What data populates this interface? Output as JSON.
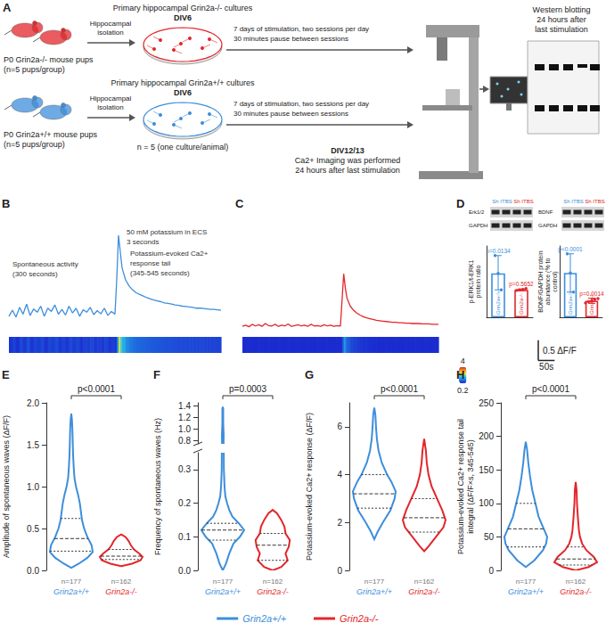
{
  "diagram": {
    "panel": "A",
    "ko_pups": [
      "P0 Grin2a-/- mouse pups",
      "(n=5 pups/group)"
    ],
    "wt_pups": [
      "P0 Grin2a+/+ mouse pups",
      "(n=5 pups/group)"
    ],
    "isolation": [
      "Hippocampal",
      "isolation"
    ],
    "ko_culture": [
      "Primary hippocampal Grin2a-/- cultures",
      "DIV6"
    ],
    "wt_culture": [
      "Primary hippocampal Grin2a+/+ cultures",
      "DIV6"
    ],
    "stimulation": [
      "7 days of stimulation, two sessions per day",
      "30 minutes pause between sessions"
    ],
    "culture_n": "n = 5 (one culture/animal)",
    "imaging": [
      "DIV12/13",
      "Ca2+ Imaging was performed",
      "24 hours after last stimulation"
    ],
    "western": [
      "Western blotting",
      "24 hours after",
      "last stimulation"
    ]
  },
  "legend": "bottom",
  "groups": [
    {
      "name": "Grin2a+/+",
      "color": "#3d8edb"
    },
    {
      "name": "Grin2a-/-",
      "color": "#e3262a"
    }
  ],
  "chart_data": [
    {
      "panel": "B",
      "type": "line",
      "x": [
        0,
        10,
        20,
        30,
        40,
        50,
        60,
        70,
        80,
        90,
        100,
        110,
        120,
        130,
        140,
        150,
        160,
        170,
        180,
        190,
        200,
        210,
        220,
        230,
        240,
        250,
        260,
        270,
        280,
        290,
        300,
        305,
        310,
        315,
        320,
        330,
        340,
        350,
        360,
        370,
        380,
        390,
        400,
        410,
        420,
        430,
        440,
        450,
        460,
        470,
        480,
        490,
        500,
        510,
        520,
        530,
        540,
        550,
        560,
        570,
        580,
        590,
        600
      ],
      "series": [
        {
          "name": "Grin2a+/+",
          "color": "#3d8edb",
          "values": [
            0.3,
            0.45,
            0.28,
            0.52,
            0.35,
            0.6,
            0.32,
            0.48,
            0.4,
            0.55,
            0.3,
            0.5,
            0.42,
            0.58,
            0.35,
            0.47,
            0.33,
            0.55,
            0.38,
            0.5,
            0.3,
            0.46,
            0.4,
            0.52,
            0.34,
            0.44,
            0.36,
            0.5,
            0.32,
            0.42,
            0.35,
            1.2,
            2.3,
            1.9,
            1.5,
            1.2,
            1.05,
            0.95,
            0.88,
            0.84,
            0.8,
            0.76,
            0.73,
            0.7,
            0.68,
            0.66,
            0.63,
            0.62,
            0.6,
            0.58,
            0.57,
            0.55,
            0.54,
            0.53,
            0.52,
            0.5,
            0.5,
            0.49,
            0.48,
            0.47,
            0.47,
            0.46,
            0.45
          ]
        }
      ],
      "xlim": [
        0,
        600
      ],
      "ylim": [
        -0.1,
        2.5
      ],
      "tick_labels": false,
      "grid": false,
      "annotations": [
        [
          "50 mM potassium in ECS",
          "3 seconds"
        ],
        [
          "Spontaneous activity",
          "(300 seconds)"
        ],
        [
          "Potassium-evoked Ca2+ response tail",
          "(345-545 seconds)"
        ]
      ]
    },
    {
      "panel": "C",
      "type": "line",
      "x": [
        0,
        10,
        20,
        30,
        40,
        50,
        60,
        70,
        80,
        90,
        100,
        110,
        120,
        130,
        140,
        150,
        160,
        170,
        180,
        190,
        200,
        210,
        220,
        230,
        240,
        250,
        260,
        270,
        280,
        290,
        300,
        305,
        310,
        315,
        320,
        330,
        340,
        350,
        360,
        370,
        380,
        390,
        400,
        410,
        420,
        430,
        440,
        450,
        460,
        470,
        480,
        490,
        500,
        510,
        520,
        530,
        540,
        550,
        560,
        570,
        580,
        590,
        600
      ],
      "series": [
        {
          "name": "Grin2a-/-",
          "color": "#e3262a",
          "values": [
            0.05,
            0.08,
            0.04,
            0.1,
            0.06,
            0.09,
            0.05,
            0.12,
            0.07,
            0.06,
            0.1,
            0.05,
            0.08,
            0.06,
            0.11,
            0.05,
            0.07,
            0.09,
            0.06,
            0.08,
            0.05,
            0.1,
            0.06,
            0.07,
            0.05,
            0.09,
            0.06,
            0.08,
            0.05,
            0.07,
            0.06,
            0.7,
            1.35,
            1.0,
            0.75,
            0.55,
            0.45,
            0.38,
            0.33,
            0.29,
            0.26,
            0.24,
            0.22,
            0.2,
            0.19,
            0.18,
            0.17,
            0.16,
            0.15,
            0.15,
            0.14,
            0.14,
            0.13,
            0.13,
            0.12,
            0.12,
            0.12,
            0.11,
            0.11,
            0.11,
            0.1,
            0.1,
            0.1
          ]
        }
      ],
      "xlim": [
        0,
        600
      ],
      "ylim": [
        -0.1,
        2.5
      ],
      "tick_labels": false,
      "grid": false,
      "colorbar": {
        "range": [
          0.2,
          4
        ],
        "ticks": [
          0.2,
          4
        ]
      },
      "scale_bar": {
        "y": 0.5,
        "y_label": "0.5 ΔF/F",
        "x": 50,
        "x_label": "50s"
      }
    },
    {
      "panel": "D",
      "type": "bar",
      "blot": {
        "rows": [
          "Erk1/2",
          "GAPDH"
        ],
        "lanes": [
          "Sh",
          "ITBS",
          "Sh",
          "ITBS"
        ],
        "lane_colors": [
          "#3d8edb",
          "#3d8edb",
          "#e3262a",
          "#e3262a"
        ]
      },
      "ylabel": "p-ERK1/t-ERK1 protein ratio",
      "categories": [
        "Grin2a+/+",
        "Grin2a-/-"
      ],
      "values": [
        160,
        100
      ],
      "colors": [
        "#3d8edb",
        "#e3262a"
      ],
      "errors": [
        [
          100,
          225
        ],
        [
          98,
          103
        ]
      ],
      "points": [
        [
          225,
          160,
          100
        ],
        [
          98,
          100,
          102,
          105
        ]
      ],
      "p_values": [
        "p=0.0134",
        "p=0.5652"
      ],
      "ylim": [
        0,
        260
      ],
      "tick_labels": false
    },
    {
      "type": "bar",
      "blot": {
        "rows": [
          "BDNF",
          "GAPDH"
        ],
        "lanes": [
          "Sh",
          "ITBS",
          "Sh",
          "ITBS"
        ],
        "lane_colors": [
          "#3d8edb",
          "#3d8edb",
          "#e3262a",
          "#e3262a"
        ]
      },
      "ylabel": "BDNF/GAPDH protein abundance (% to control)",
      "categories": [
        "Grin2a+/+",
        "Grin2a-/-"
      ],
      "values": [
        510,
        190
      ],
      "colors": [
        "#3d8edb",
        "#e3262a"
      ],
      "errors": [
        [
          290,
          730
        ],
        [
          160,
          220
        ]
      ],
      "points": [
        [
          730,
          510,
          290
        ],
        [
          165,
          180,
          190,
          205,
          215
        ]
      ],
      "p_values": [
        "p<0.0001",
        "p=0.0014"
      ],
      "ylim": [
        0,
        820
      ],
      "tick_labels": false
    },
    {
      "panel": "E",
      "type": "violin",
      "ylabel": "Amplitude of spontaneous waves (ΔF/F)",
      "categories": [
        "Grin2a+/+",
        "Grin2a-/-"
      ],
      "p_value": "p<0.0001",
      "ylim": [
        0,
        2
      ],
      "yticks": [
        {
          "value": 0,
          "label": "0.0"
        },
        0.5,
        {
          "value": 1,
          "label": "1.0"
        },
        1.5,
        {
          "value": 2,
          "label": "2.0"
        }
      ],
      "series": [
        {
          "name": "Grin2a+/+",
          "color": "#3d8edb",
          "n_label": "n=177",
          "quartiles": [
            0.23,
            0.38,
            0.62
          ],
          "profile": [
            [
              0.03,
              0
            ],
            [
              0.08,
              0.35
            ],
            [
              0.15,
              0.75
            ],
            [
              0.22,
              1.0
            ],
            [
              0.3,
              0.95
            ],
            [
              0.4,
              0.75
            ],
            [
              0.5,
              0.6
            ],
            [
              0.6,
              0.5
            ],
            [
              0.7,
              0.45
            ],
            [
              0.8,
              0.4
            ],
            [
              0.9,
              0.32
            ],
            [
              1.0,
              0.22
            ],
            [
              1.1,
              0.15
            ],
            [
              1.2,
              0.12
            ],
            [
              1.3,
              0.1
            ],
            [
              1.4,
              0.08
            ],
            [
              1.5,
              0.07
            ],
            [
              1.6,
              0.06
            ],
            [
              1.7,
              0.05
            ],
            [
              1.8,
              0.03
            ],
            [
              1.87,
              0
            ]
          ]
        },
        {
          "name": "Grin2a-/-",
          "color": "#e3262a",
          "n_label": "n=162",
          "quartiles": [
            0.13,
            0.17,
            0.25
          ],
          "profile": [
            [
              0.05,
              0
            ],
            [
              0.08,
              0.5
            ],
            [
              0.12,
              0.9
            ],
            [
              0.16,
              1.0
            ],
            [
              0.2,
              0.85
            ],
            [
              0.25,
              0.6
            ],
            [
              0.3,
              0.45
            ],
            [
              0.35,
              0.35
            ],
            [
              0.4,
              0.2
            ],
            [
              0.43,
              0
            ]
          ]
        }
      ]
    },
    {
      "panel": "F",
      "type": "violin",
      "ylabel": "Frequency of spontaneous waves (Hz)",
      "categories": [
        "Grin2a+/+",
        "Grin2a-/-"
      ],
      "p_value": "p=0.0003",
      "segments": [
        {
          "ylim": [
            0.75,
            1.45
          ],
          "yticks": [
            0.8,
            {
              "value": 1,
              "label": "1.0"
            },
            1.2,
            1.4
          ]
        },
        {
          "ylim": [
            0,
            0.35
          ],
          "yticks": [
            {
              "value": 0,
              "label": "0.0"
            },
            0.1,
            0.2,
            0.3
          ]
        }
      ],
      "series": [
        {
          "name": "Grin2a+/+",
          "color": "#3d8edb",
          "n_label": "n=177",
          "quartiles": [
            0.09,
            0.12,
            0.14
          ],
          "profile": [
            [
              0,
              0
            ],
            [
              0.02,
              0.15
            ],
            [
              0.05,
              0.3
            ],
            [
              0.08,
              0.5
            ],
            [
              0.1,
              0.8
            ],
            [
              0.12,
              1.0
            ],
            [
              0.14,
              0.75
            ],
            [
              0.16,
              0.45
            ],
            [
              0.18,
              0.3
            ],
            [
              0.2,
              0.2
            ],
            [
              0.22,
              0.12
            ],
            [
              0.25,
              0.08
            ],
            [
              0.3,
              0.05
            ],
            [
              0.5,
              0.03
            ],
            [
              0.9,
              0.04
            ],
            [
              1.0,
              0.03
            ],
            [
              1.1,
              0.02
            ],
            [
              1.35,
              0.02
            ],
            [
              1.38,
              0
            ]
          ]
        },
        {
          "name": "Grin2a-/-",
          "color": "#e3262a",
          "n_label": "n=162",
          "quartiles": [
            0.03,
            0.075,
            0.11
          ],
          "profile": [
            [
              0,
              0
            ],
            [
              0.01,
              0.4
            ],
            [
              0.03,
              0.7
            ],
            [
              0.05,
              0.6
            ],
            [
              0.07,
              0.75
            ],
            [
              0.09,
              0.8
            ],
            [
              0.11,
              0.6
            ],
            [
              0.13,
              0.55
            ],
            [
              0.15,
              0.4
            ],
            [
              0.17,
              0.2
            ],
            [
              0.18,
              0
            ]
          ]
        }
      ]
    },
    {
      "panel": "G",
      "type": "violin",
      "ylabel": "Potassium-evoked Ca2+ response (ΔF/F)",
      "categories": [
        "Grin2a+/+",
        "Grin2a-/-"
      ],
      "p_value": "p<0.0001",
      "ylim": [
        0,
        7
      ],
      "yticks": [
        0,
        2,
        4,
        6
      ],
      "series": [
        {
          "name": "Grin2a+/+",
          "color": "#3d8edb",
          "n_label": "n=177",
          "quartiles": [
            2.6,
            3.2,
            4.0
          ],
          "profile": [
            [
              1.3,
              0
            ],
            [
              1.6,
              0.15
            ],
            [
              2.0,
              0.4
            ],
            [
              2.5,
              0.75
            ],
            [
              3.0,
              0.95
            ],
            [
              3.3,
              1.0
            ],
            [
              3.7,
              0.8
            ],
            [
              4.0,
              0.6
            ],
            [
              4.5,
              0.35
            ],
            [
              5.0,
              0.2
            ],
            [
              5.5,
              0.12
            ],
            [
              6.0,
              0.08
            ],
            [
              6.5,
              0.05
            ],
            [
              6.8,
              0
            ]
          ]
        },
        {
          "name": "Grin2a-/-",
          "color": "#e3262a",
          "n_label": "n=162",
          "quartiles": [
            1.6,
            2.2,
            3.0
          ],
          "profile": [
            [
              0.8,
              0
            ],
            [
              1.0,
              0.2
            ],
            [
              1.4,
              0.55
            ],
            [
              1.8,
              0.9
            ],
            [
              2.1,
              1.0
            ],
            [
              2.5,
              0.85
            ],
            [
              3.0,
              0.6
            ],
            [
              3.5,
              0.35
            ],
            [
              4.0,
              0.2
            ],
            [
              4.5,
              0.12
            ],
            [
              5.0,
              0.08
            ],
            [
              5.5,
              0
            ]
          ]
        }
      ]
    },
    {
      "panel": "H",
      "type": "violin",
      "ylabel": "Potassium-evoked Ca2+ response tail integral (ΔF/F×s, 345-545)",
      "categories": [
        "Grin2a+/+",
        "Grin2a-/-"
      ],
      "p_value": "p<0.0001",
      "ylim": [
        0,
        250
      ],
      "yticks": [
        0,
        50,
        100,
        150,
        200,
        250
      ],
      "series": [
        {
          "name": "Grin2a+/+",
          "color": "#3d8edb",
          "n_label": "n=177",
          "quartiles": [
            35,
            62,
            100
          ],
          "profile": [
            [
              5,
              0
            ],
            [
              15,
              0.4
            ],
            [
              30,
              0.8
            ],
            [
              40,
              0.95
            ],
            [
              50,
              1.0
            ],
            [
              65,
              0.8
            ],
            [
              80,
              0.6
            ],
            [
              100,
              0.45
            ],
            [
              120,
              0.3
            ],
            [
              140,
              0.2
            ],
            [
              160,
              0.12
            ],
            [
              180,
              0.06
            ],
            [
              192,
              0
            ]
          ]
        },
        {
          "name": "Grin2a-/-",
          "color": "#e3262a",
          "n_label": "n=162",
          "quartiles": [
            8,
            17,
            35
          ],
          "profile": [
            [
              0,
              0
            ],
            [
              5,
              0.6
            ],
            [
              12,
              1.0
            ],
            [
              20,
              0.85
            ],
            [
              30,
              0.5
            ],
            [
              40,
              0.3
            ],
            [
              50,
              0.2
            ],
            [
              60,
              0.15
            ],
            [
              80,
              0.1
            ],
            [
              100,
              0.06
            ],
            [
              120,
              0.04
            ],
            [
              132,
              0
            ]
          ]
        }
      ]
    }
  ]
}
